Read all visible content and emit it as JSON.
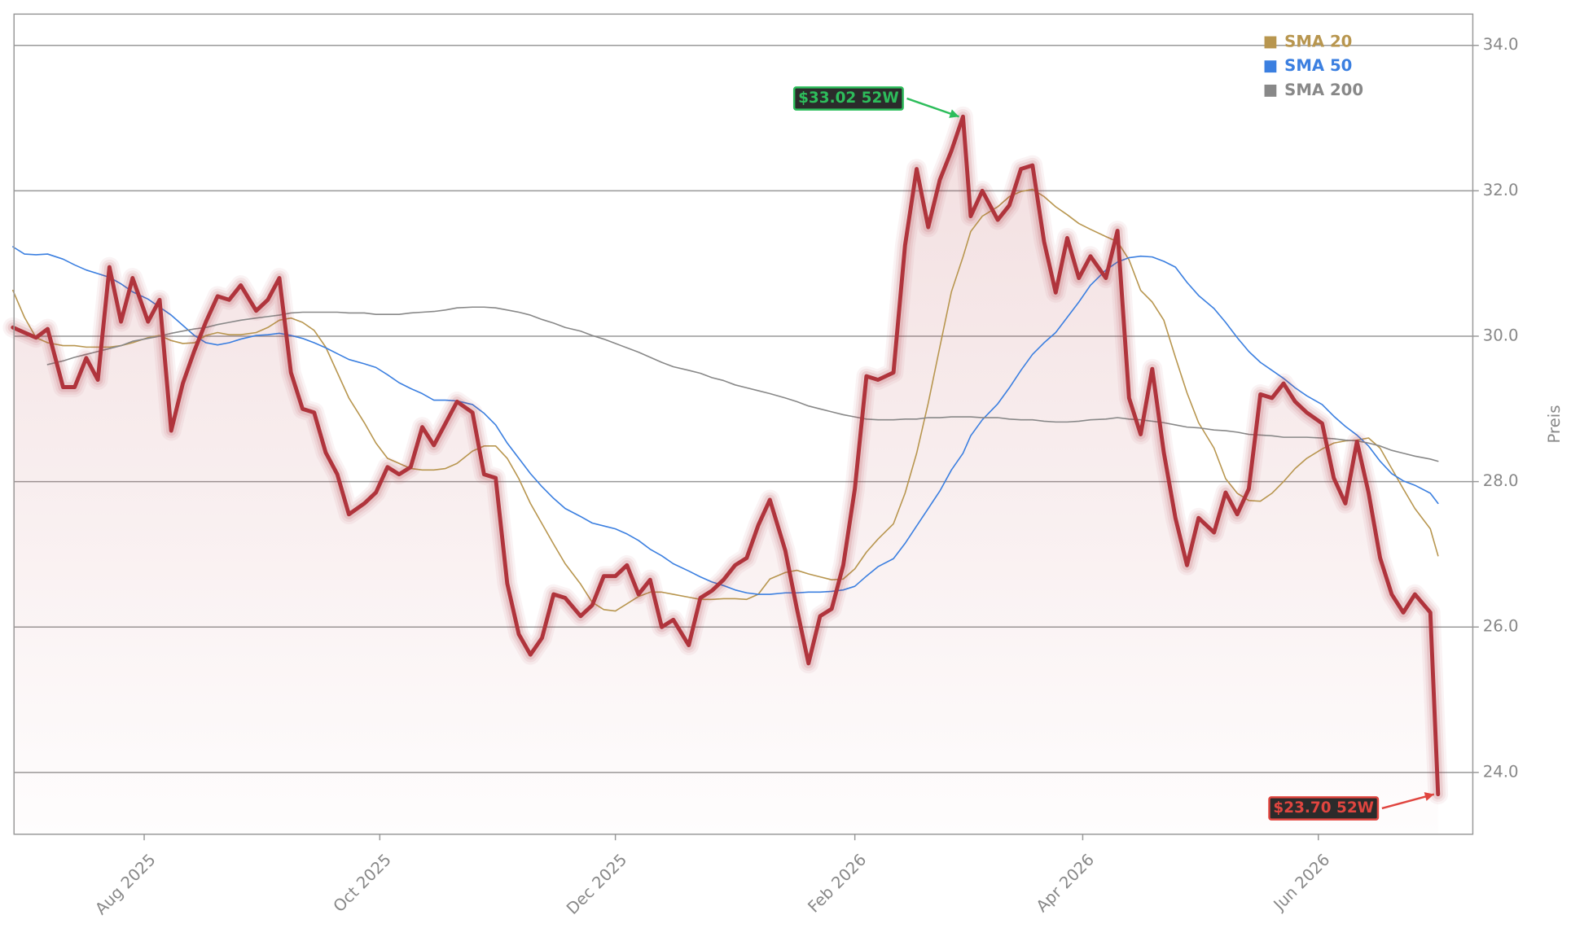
{
  "chart_data": {
    "type": "line",
    "y_label": "Preis",
    "x": [
      -3,
      0,
      3,
      6,
      10,
      13,
      16,
      19,
      22,
      25,
      28,
      32,
      35,
      38,
      41,
      44,
      47,
      50,
      53,
      56,
      60,
      63,
      66,
      69,
      72,
      75,
      78,
      81,
      84,
      88,
      91,
      94,
      97,
      100,
      103,
      106,
      109,
      112,
      116,
      119,
      122,
      125,
      128,
      131,
      134,
      137,
      140,
      144,
      147,
      150,
      153,
      156,
      159,
      162,
      165,
      168,
      172,
      175,
      178,
      181,
      184,
      187,
      190,
      193,
      197,
      200,
      203,
      206,
      209,
      212,
      215,
      218,
      221,
      225,
      228,
      231,
      234,
      237,
      240,
      243,
      245,
      248,
      252,
      255,
      258,
      261,
      264,
      267,
      270,
      273,
      276,
      280,
      283,
      286,
      289,
      292,
      295,
      298,
      301,
      304,
      308,
      311,
      314,
      317,
      320,
      323,
      326,
      329,
      332,
      336,
      339,
      342,
      345,
      348,
      351,
      354,
      357,
      360,
      364,
      366
    ],
    "series": [
      {
        "color": "#b0343c",
        "area": true,
        "values": [
          30.12,
          30.05,
          29.98,
          30.1,
          29.3,
          29.3,
          29.7,
          29.4,
          30.95,
          30.2,
          30.8,
          30.2,
          30.5,
          28.7,
          29.35,
          29.8,
          30.2,
          30.55,
          30.5,
          30.7,
          30.35,
          30.5,
          30.8,
          29.5,
          29.0,
          28.95,
          28.4,
          28.1,
          27.55,
          27.7,
          27.85,
          28.2,
          28.1,
          28.2,
          28.75,
          28.5,
          28.8,
          29.1,
          28.95,
          28.1,
          28.05,
          26.6,
          25.9,
          25.62,
          25.85,
          26.45,
          26.4,
          26.15,
          26.3,
          26.7,
          26.7,
          26.85,
          26.45,
          26.65,
          26.0,
          26.1,
          25.75,
          26.4,
          26.5,
          26.65,
          26.85,
          26.95,
          27.4,
          27.75,
          27.05,
          26.25,
          25.5,
          26.15,
          26.25,
          26.85,
          27.9,
          29.45,
          29.4,
          29.5,
          31.25,
          32.3,
          31.5,
          32.15,
          32.55,
          33.02,
          31.65,
          32.0,
          31.6,
          31.8,
          32.3,
          32.35,
          31.3,
          30.6,
          31.35,
          30.8,
          31.1,
          30.8,
          31.45,
          29.15,
          28.65,
          29.55,
          28.4,
          27.5,
          26.85,
          27.5,
          27.3,
          27.85,
          27.55,
          27.9,
          29.2,
          29.15,
          29.35,
          29.1,
          28.95,
          28.8,
          28.05,
          27.7,
          28.55,
          27.85,
          26.95,
          26.45,
          26.2,
          26.45,
          26.2,
          23.7
        ]
      },
      {
        "name": "SMA 20",
        "color": "#b8964f",
        "values": [
          30.63,
          30.26,
          29.98,
          29.91,
          29.87,
          29.87,
          29.85,
          29.85,
          29.85,
          29.87,
          29.91,
          29.98,
          30.01,
          29.94,
          29.9,
          29.91,
          30.01,
          30.05,
          30.02,
          30.02,
          30.05,
          30.12,
          30.22,
          30.25,
          30.19,
          30.08,
          29.85,
          29.5,
          29.15,
          28.81,
          28.53,
          28.32,
          28.25,
          28.18,
          28.16,
          28.16,
          28.18,
          28.25,
          28.42,
          28.49,
          28.49,
          28.32,
          28.04,
          27.7,
          27.42,
          27.14,
          26.87,
          26.59,
          26.34,
          26.24,
          26.22,
          26.32,
          26.42,
          26.48,
          26.48,
          26.45,
          26.41,
          26.38,
          26.38,
          26.39,
          26.39,
          26.38,
          26.45,
          26.66,
          26.75,
          26.78,
          26.73,
          26.69,
          26.65,
          26.66,
          26.8,
          27.03,
          27.21,
          27.42,
          27.84,
          28.39,
          29.08,
          29.85,
          30.61,
          31.09,
          31.44,
          31.65,
          31.78,
          31.92,
          31.99,
          32.02,
          31.92,
          31.78,
          31.67,
          31.55,
          31.47,
          31.37,
          31.3,
          31.05,
          30.63,
          30.47,
          30.22,
          29.71,
          29.22,
          28.81,
          28.46,
          28.04,
          27.84,
          27.74,
          27.73,
          27.84,
          28.0,
          28.18,
          28.32,
          28.45,
          28.53,
          28.56,
          28.57,
          28.6,
          28.46,
          28.18,
          27.9,
          27.63,
          27.35,
          26.98
        ]
      },
      {
        "name": "SMA 50",
        "color": "#3b7fe0",
        "values": [
          31.23,
          31.13,
          31.12,
          31.13,
          31.06,
          30.98,
          30.91,
          30.86,
          30.81,
          30.72,
          30.61,
          30.51,
          30.4,
          30.29,
          30.15,
          30.01,
          29.91,
          29.88,
          29.91,
          29.96,
          30.01,
          30.02,
          30.04,
          30.01,
          29.97,
          29.91,
          29.84,
          29.76,
          29.68,
          29.62,
          29.57,
          29.47,
          29.36,
          29.28,
          29.21,
          29.12,
          29.12,
          29.11,
          29.06,
          28.94,
          28.78,
          28.53,
          28.32,
          28.11,
          27.93,
          27.77,
          27.63,
          27.52,
          27.43,
          27.39,
          27.35,
          27.28,
          27.19,
          27.07,
          26.98,
          26.87,
          26.77,
          26.69,
          26.62,
          26.57,
          26.51,
          26.47,
          26.45,
          26.45,
          26.47,
          26.47,
          26.48,
          26.48,
          26.49,
          26.51,
          26.56,
          26.7,
          26.83,
          26.94,
          27.15,
          27.39,
          27.63,
          27.87,
          28.16,
          28.39,
          28.63,
          28.85,
          29.07,
          29.29,
          29.53,
          29.75,
          29.91,
          30.05,
          30.26,
          30.47,
          30.7,
          30.91,
          31.02,
          31.08,
          31.1,
          31.09,
          31.03,
          30.95,
          30.74,
          30.56,
          30.38,
          30.19,
          29.98,
          29.79,
          29.64,
          29.53,
          29.42,
          29.29,
          29.18,
          29.06,
          28.9,
          28.76,
          28.64,
          28.49,
          28.28,
          28.11,
          28.01,
          27.95,
          27.84,
          27.7
        ]
      },
      {
        "name": "SMA 200",
        "color": "#888888",
        "values": [
          null,
          null,
          null,
          29.61,
          29.66,
          29.71,
          29.75,
          29.79,
          29.83,
          29.87,
          29.93,
          29.97,
          30.0,
          30.04,
          30.07,
          30.1,
          30.12,
          30.16,
          30.19,
          30.22,
          30.25,
          30.27,
          30.29,
          30.32,
          30.33,
          30.33,
          30.33,
          30.33,
          30.32,
          30.32,
          30.3,
          30.3,
          30.3,
          30.32,
          30.33,
          30.34,
          30.36,
          30.39,
          30.4,
          30.4,
          30.39,
          30.36,
          30.33,
          30.29,
          30.23,
          30.18,
          30.12,
          30.07,
          30.01,
          29.96,
          29.9,
          29.84,
          29.78,
          29.71,
          29.64,
          29.58,
          29.53,
          29.49,
          29.43,
          29.39,
          29.33,
          29.29,
          29.25,
          29.21,
          29.15,
          29.1,
          29.04,
          29.0,
          28.96,
          28.92,
          28.89,
          28.86,
          28.85,
          28.85,
          28.86,
          28.86,
          28.88,
          28.88,
          28.89,
          28.89,
          28.89,
          28.88,
          28.88,
          28.86,
          28.85,
          28.85,
          28.83,
          28.82,
          28.82,
          28.83,
          28.85,
          28.86,
          28.88,
          28.86,
          28.85,
          28.83,
          28.81,
          28.78,
          28.75,
          28.74,
          28.71,
          28.7,
          28.68,
          28.65,
          28.64,
          28.63,
          28.61,
          28.61,
          28.61,
          28.6,
          28.59,
          28.57,
          28.56,
          28.53,
          28.49,
          28.43,
          28.39,
          28.35,
          28.31,
          28.28
        ]
      }
    ],
    "annotations": [
      {
        "label": "$33.02 52W",
        "x": 243,
        "y": 33.02,
        "color": "#2dbd5b"
      },
      {
        "label": "$23.70 52W",
        "x": 366,
        "y": 23.7,
        "color": "#e0453f"
      }
    ],
    "xlim": [
      -2.7,
      375
    ],
    "xticks": [
      {
        "value": 31,
        "label": "Aug 2025"
      },
      {
        "value": 92,
        "label": "Oct 2025"
      },
      {
        "value": 153,
        "label": "Dec 2025"
      },
      {
        "value": 215,
        "label": "Feb 2026"
      },
      {
        "value": 274,
        "label": "Apr 2026"
      },
      {
        "value": 335,
        "label": "Jun 2026"
      }
    ],
    "ylim": [
      23.15,
      34.43
    ],
    "yticks": [
      {
        "value": 24,
        "label": "24.0"
      },
      {
        "value": 26,
        "label": "26.0"
      },
      {
        "value": 28,
        "label": "28.0"
      },
      {
        "value": 30,
        "label": "30.0"
      },
      {
        "value": 32,
        "label": "32.0"
      },
      {
        "value": 34,
        "label": "34.0"
      }
    ],
    "grid": true,
    "legend": "upper right"
  }
}
